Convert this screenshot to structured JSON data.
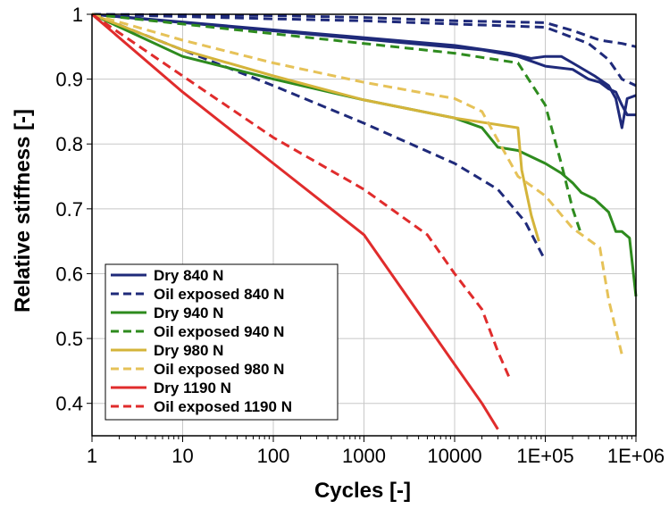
{
  "chart_data": {
    "type": "line",
    "title": "",
    "xlabel": "Cycles [-]",
    "ylabel": "Relative stiffness [-]",
    "x_scale": "log",
    "xlim": [
      1,
      1000000
    ],
    "ylim": [
      0.35,
      1.0
    ],
    "x_ticks": [
      1,
      10,
      100,
      1000,
      10000,
      100000,
      1000000
    ],
    "x_tick_labels": [
      "1",
      "10",
      "100",
      "1000",
      "10000",
      "1E+05",
      "1E+06"
    ],
    "y_ticks": [
      0.4,
      0.5,
      0.6,
      0.7,
      0.8,
      0.9,
      1.0
    ],
    "y_tick_labels": [
      "0.4",
      "0.5",
      "0.6",
      "0.7",
      "0.8",
      "0.9",
      "1"
    ],
    "grid": {
      "x_major": true,
      "y_major": true
    },
    "legend_position": "lower-left",
    "series": [
      {
        "name": "Dry 840 N",
        "color": "#1f2a7a",
        "dash": "solid",
        "points": [
          [
            1,
            1.0
          ],
          [
            10000,
            0.952
          ],
          [
            40000,
            0.94
          ],
          [
            70000,
            0.932
          ],
          [
            100000,
            0.935
          ],
          [
            150000,
            0.935
          ],
          [
            200000,
            0.925
          ],
          [
            350000,
            0.905
          ],
          [
            500000,
            0.89
          ],
          [
            600000,
            0.87
          ],
          [
            700000,
            0.825
          ],
          [
            800000,
            0.87
          ],
          [
            1000000,
            0.875
          ]
        ]
      },
      {
        "name": "Dry 840 N",
        "color": "#1f2a7a",
        "dash": "solid",
        "points": [
          [
            1,
            1.0
          ],
          [
            20000,
            0.945
          ],
          [
            50000,
            0.935
          ],
          [
            100000,
            0.92
          ],
          [
            200000,
            0.915
          ],
          [
            300000,
            0.9
          ],
          [
            400000,
            0.895
          ],
          [
            500000,
            0.885
          ],
          [
            600000,
            0.88
          ],
          [
            700000,
            0.86
          ],
          [
            800000,
            0.845
          ],
          [
            1000000,
            0.845
          ]
        ]
      },
      {
        "name": "Oil exposed 840 N",
        "color": "#1f2a7a",
        "dash": "dashed",
        "points": [
          [
            1,
            1.0
          ],
          [
            100,
            0.998
          ],
          [
            1000,
            0.995
          ],
          [
            10000,
            0.99
          ],
          [
            100000,
            0.987
          ],
          [
            200000,
            0.975
          ],
          [
            400000,
            0.96
          ],
          [
            700000,
            0.955
          ],
          [
            1000000,
            0.95
          ]
        ]
      },
      {
        "name": "Oil exposed 840 N",
        "color": "#1f2a7a",
        "dash": "dashed",
        "points": [
          [
            1,
            1.0
          ],
          [
            100,
            0.993
          ],
          [
            1000,
            0.99
          ],
          [
            10000,
            0.985
          ],
          [
            100000,
            0.98
          ],
          [
            300000,
            0.955
          ],
          [
            500000,
            0.93
          ],
          [
            700000,
            0.9
          ],
          [
            1000000,
            0.89
          ]
        ]
      },
      {
        "name": "Oil exposed 840 N",
        "color": "#1f2a7a",
        "dash": "dashed",
        "points": [
          [
            1,
            1.0
          ],
          [
            10,
            0.945
          ],
          [
            100,
            0.89
          ],
          [
            1000,
            0.832
          ],
          [
            10000,
            0.77
          ],
          [
            30000,
            0.73
          ],
          [
            60000,
            0.68
          ],
          [
            100000,
            0.62
          ]
        ]
      },
      {
        "name": "Dry 940 N",
        "color": "#2e8b1e",
        "dash": "solid",
        "points": [
          [
            1,
            1.0
          ],
          [
            10,
            0.935
          ],
          [
            100,
            0.9
          ],
          [
            1000,
            0.868
          ],
          [
            10000,
            0.84
          ],
          [
            20000,
            0.825
          ],
          [
            30000,
            0.795
          ],
          [
            50000,
            0.79
          ],
          [
            100000,
            0.77
          ],
          [
            150000,
            0.755
          ],
          [
            200000,
            0.74
          ],
          [
            250000,
            0.725
          ],
          [
            350000,
            0.715
          ],
          [
            500000,
            0.695
          ],
          [
            600000,
            0.665
          ],
          [
            700000,
            0.665
          ],
          [
            850000,
            0.655
          ],
          [
            1000000,
            0.565
          ]
        ]
      },
      {
        "name": "Oil exposed 940 N",
        "color": "#2e8b1e",
        "dash": "dashed",
        "points": [
          [
            1,
            1.0
          ],
          [
            10,
            0.985
          ],
          [
            100,
            0.97
          ],
          [
            1000,
            0.955
          ],
          [
            10000,
            0.94
          ],
          [
            50000,
            0.925
          ],
          [
            100000,
            0.86
          ],
          [
            150000,
            0.77
          ],
          [
            200000,
            0.7
          ],
          [
            250000,
            0.66
          ]
        ]
      },
      {
        "name": "Dry 980 N",
        "color": "#d4b43a",
        "dash": "solid",
        "points": [
          [
            1,
            1.0
          ],
          [
            10,
            0.945
          ],
          [
            100,
            0.905
          ],
          [
            1000,
            0.868
          ],
          [
            10000,
            0.84
          ],
          [
            50000,
            0.825
          ],
          [
            55000,
            0.76
          ],
          [
            70000,
            0.69
          ],
          [
            85000,
            0.65
          ]
        ]
      },
      {
        "name": "Oil exposed 980 N",
        "color": "#e6c258",
        "dash": "dashed",
        "points": [
          [
            1,
            1.0
          ],
          [
            10,
            0.96
          ],
          [
            100,
            0.925
          ],
          [
            1000,
            0.895
          ],
          [
            10000,
            0.87
          ],
          [
            20000,
            0.85
          ],
          [
            50000,
            0.75
          ],
          [
            100000,
            0.72
          ],
          [
            200000,
            0.67
          ],
          [
            400000,
            0.64
          ],
          [
            500000,
            0.56
          ],
          [
            700000,
            0.475
          ]
        ]
      },
      {
        "name": "Dry 1190 N",
        "color": "#e02c2c",
        "dash": "solid",
        "points": [
          [
            1,
            1.0
          ],
          [
            10,
            0.88
          ],
          [
            100,
            0.77
          ],
          [
            1000,
            0.66
          ],
          [
            10000,
            0.46
          ],
          [
            20000,
            0.4
          ],
          [
            30000,
            0.36
          ]
        ]
      },
      {
        "name": "Oil exposed 1190 N",
        "color": "#e02c2c",
        "dash": "dashed",
        "points": [
          [
            1,
            1.0
          ],
          [
            10,
            0.905
          ],
          [
            100,
            0.81
          ],
          [
            1000,
            0.73
          ],
          [
            5000,
            0.66
          ],
          [
            10000,
            0.6
          ],
          [
            20000,
            0.545
          ],
          [
            30000,
            0.48
          ],
          [
            40000,
            0.44
          ]
        ]
      }
    ],
    "legend": [
      {
        "label": "Dry 840 N",
        "color": "#1f2a7a",
        "dash": "solid"
      },
      {
        "label": "Oil exposed 840 N",
        "color": "#1f2a7a",
        "dash": "dashed"
      },
      {
        "label": "Dry 940 N",
        "color": "#2e8b1e",
        "dash": "solid"
      },
      {
        "label": "Oil exposed 940 N",
        "color": "#2e8b1e",
        "dash": "dashed"
      },
      {
        "label": "Dry 980 N",
        "color": "#d4b43a",
        "dash": "solid"
      },
      {
        "label": "Oil exposed 980 N",
        "color": "#e6c258",
        "dash": "dashed"
      },
      {
        "label": "Dry 1190 N",
        "color": "#e02c2c",
        "dash": "solid"
      },
      {
        "label": "Oil exposed 1190 N",
        "color": "#e02c2c",
        "dash": "dashed"
      }
    ]
  }
}
